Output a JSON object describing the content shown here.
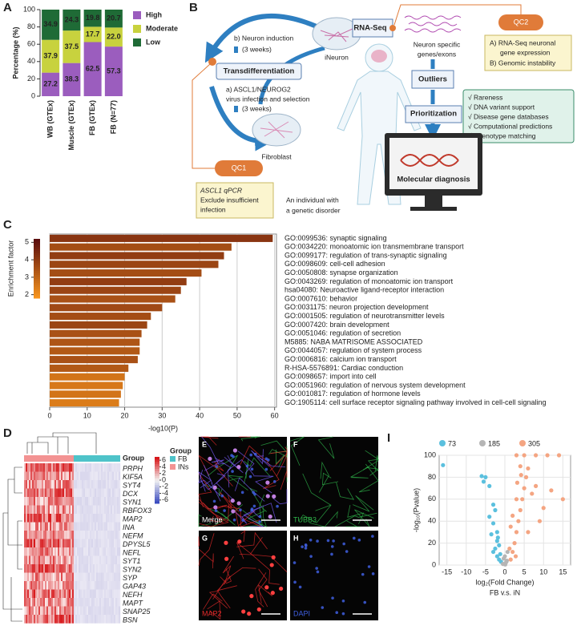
{
  "panel_labels": [
    "A",
    "B",
    "C",
    "D",
    "I"
  ],
  "chart_data": [
    {
      "type": "stacked-bar",
      "ylabel": "Percentage (%)",
      "categories": [
        "WB (GTEx)",
        "Muscle (GTEx)",
        "FB (GTEx)",
        "FB (N=77)"
      ],
      "series": [
        {
          "name": "High",
          "color": "#9b5dbe",
          "values": [
            27.2,
            38.3,
            62.5,
            57.3
          ]
        },
        {
          "name": "Moderate",
          "color": "#c8d23e",
          "values": [
            37.9,
            37.5,
            17.7,
            22.0
          ],
          "value_labels": [
            "37.9",
            "37.5",
            "17.7",
            "22.0"
          ]
        },
        {
          "name": "Low",
          "color": "#1f6b36",
          "values": [
            34.9,
            24.3,
            19.8,
            20.7
          ]
        }
      ],
      "ylim": [
        0,
        100
      ],
      "yticks": [
        0,
        20,
        40,
        60,
        80,
        100
      ],
      "legend": "right"
    },
    {
      "type": "barh",
      "xlabel": "-log10(P)",
      "categories": [
        "GO:0099536: synaptic signaling",
        "GO:0034220: monoatomic ion transmembrane transport",
        "GO:0099177: regulation of trans-synaptic signaling",
        "GO:0098609: cell-cell adhesion",
        "GO:0050808: synapse organization",
        "GO:0043269: regulation of monoatomic ion transport",
        "hsa04080: Neuroactive ligand-receptor interaction",
        "GO:0007610: behavior",
        "GO:0031175: neuron projection development",
        "GO:0001505: regulation of neurotransmitter levels",
        "GO:0007420: brain development",
        "GO:0051046: regulation of secretion",
        "M5885: NABA MATRISOME ASSOCIATED",
        "GO:0044057: regulation of system process",
        "GO:0006816: calcium ion transport",
        "R-HSA-5576891: Cardiac conduction",
        "GO:0098657: import into cell",
        "GO:0051960: regulation of nervous system development",
        "GO:0010817: regulation of hormone levels",
        "GO:1905114: cell surface receptor signaling pathway involved in cell-cell signaling"
      ],
      "values": [
        59.5,
        48.5,
        46.5,
        45,
        40.5,
        36.5,
        35,
        33.5,
        30,
        27,
        26,
        24.5,
        24,
        24,
        23.5,
        21,
        20,
        19.5,
        19,
        18.5
      ],
      "enrichment": [
        4.2,
        3.6,
        4.0,
        3.8,
        3.6,
        4.0,
        3.8,
        3.5,
        3.7,
        3.6,
        3.8,
        3.5,
        3.4,
        3.3,
        3.5,
        3.3,
        2.6,
        2.5,
        2.6,
        2.4
      ],
      "colorbar": {
        "label": "Enrichment factor",
        "lim": [
          1.8,
          5.2
        ],
        "ticks": [
          2,
          3,
          4,
          5
        ],
        "colors": [
          "#f7941d",
          "#5b0e0e"
        ]
      },
      "xlim": [
        0,
        60.5
      ],
      "xticks": [
        0,
        10,
        20,
        30,
        40,
        50,
        60
      ],
      "grid": true
    },
    {
      "type": "scatter",
      "xlabel": "log₂(Fold Change)",
      "subtitle": "FB v.s. iN",
      "ylabel": "-log₁₀(Pvalue)",
      "series": [
        {
          "name": "73",
          "color": "#5bc0de",
          "x": [
            -16,
            -6,
            -5,
            -5.5,
            -4,
            -3,
            -2.5,
            -4,
            -3,
            -2,
            -3.5,
            -2,
            -1.5,
            -2.5,
            -1.2,
            -2,
            -1.5,
            -1,
            -3,
            -1.8
          ],
          "values": [
            91,
            81,
            80,
            76,
            72,
            55,
            50,
            44,
            38,
            30,
            28,
            22,
            18,
            15,
            10,
            8,
            5,
            3,
            12,
            25
          ]
        },
        {
          "name": "185",
          "color": "#b5b5b5",
          "x": [
            0.2,
            -0.5,
            0.5,
            0,
            -0.3,
            0.7,
            0.1,
            0.4
          ],
          "values": [
            2,
            1,
            4,
            8,
            6,
            12,
            0.5,
            3
          ]
        },
        {
          "name": "305",
          "color": "#f4a582",
          "x": [
            1.5,
            2,
            2.5,
            3,
            3.5,
            4,
            4.5,
            5,
            5.5,
            6,
            2,
            3,
            1.5,
            7,
            8,
            10,
            12,
            15,
            9,
            6,
            4,
            5,
            8,
            11,
            14,
            3,
            1.2,
            2.8,
            3.2,
            4.2
          ],
          "values": [
            5,
            12,
            20,
            30,
            40,
            50,
            60,
            70,
            80,
            88,
            45,
            60,
            35,
            65,
            72,
            52,
            68,
            60,
            40,
            30,
            90,
            100,
            100,
            100,
            100,
            100,
            15,
            8,
            75,
            82
          ]
        }
      ],
      "xlim": [
        -17,
        17
      ],
      "xticks": [
        -15,
        -10,
        -5,
        0,
        5,
        10,
        15
      ],
      "ylim": [
        0,
        100
      ],
      "yticks": [
        0,
        20,
        40,
        60,
        80,
        100
      ],
      "grid": true,
      "legend": "top"
    }
  ],
  "diagram": {
    "transdifferentiation": "Transdifferentiation",
    "step_b": "b) Neuron induction",
    "duration_b": "(3 weeks)",
    "ineuron": "iNeuron",
    "step_a": "a) ASCL1/NEUROG2",
    "step_a_detail": "virus infection and selection",
    "duration_a": "(3 weeks)",
    "fibroblast": "Fibroblast",
    "qc1": "QC1",
    "qc1_notes": [
      "ASCL1 qPCR",
      "Exclude insufficient",
      "infection"
    ],
    "individual": [
      "An individual with",
      "a genetic disorder"
    ],
    "rna_seq": "RNA-Seq",
    "neuron_genes": [
      "Neuron specific",
      "genes/exons"
    ],
    "qc2": "QC2",
    "qc2_notes": [
      "A) RNA-Seq neuronal",
      "gene expression",
      "B) Genomic instability"
    ],
    "outliers": "Outliers",
    "prioritization": "Prioritization",
    "criteria": [
      "√ Rareness",
      "√ DNA variant support",
      "√ Disease gene databases",
      "√ Computational predictions",
      "√ Phenotype matching"
    ],
    "diagnosis": "Molecular diagnosis"
  },
  "heatmap": {
    "genes": [
      "PRPH",
      "KIF5A",
      "SYT4",
      "DCX",
      "SYN1",
      "RBFOX3",
      "MAP2",
      "INA",
      "NEFM",
      "DPYSL5",
      "NEFL",
      "SYT1",
      "SYN2",
      "SYP",
      "GAP43",
      "NEFH",
      "MAPT",
      "SNAP25",
      "BSN"
    ],
    "column_bar_label": "Group",
    "legend_title": "Group",
    "groups": [
      {
        "name": "FB",
        "color": "#4ec3c9"
      },
      {
        "name": "INs",
        "color": "#f39393"
      }
    ],
    "clim": [
      -7,
      7
    ],
    "cticks": [
      6,
      4,
      2,
      0,
      -2,
      -4,
      -6
    ]
  },
  "micrographs": [
    {
      "panel": "E",
      "label": "Merge",
      "color": "#ffffff"
    },
    {
      "panel": "F",
      "label": "TUBB3",
      "color": "#2fb34a"
    },
    {
      "panel": "G",
      "label": "MAP2",
      "color": "#e32a2a"
    },
    {
      "panel": "H",
      "label": "DAPI",
      "color": "#3f5fe0"
    }
  ]
}
